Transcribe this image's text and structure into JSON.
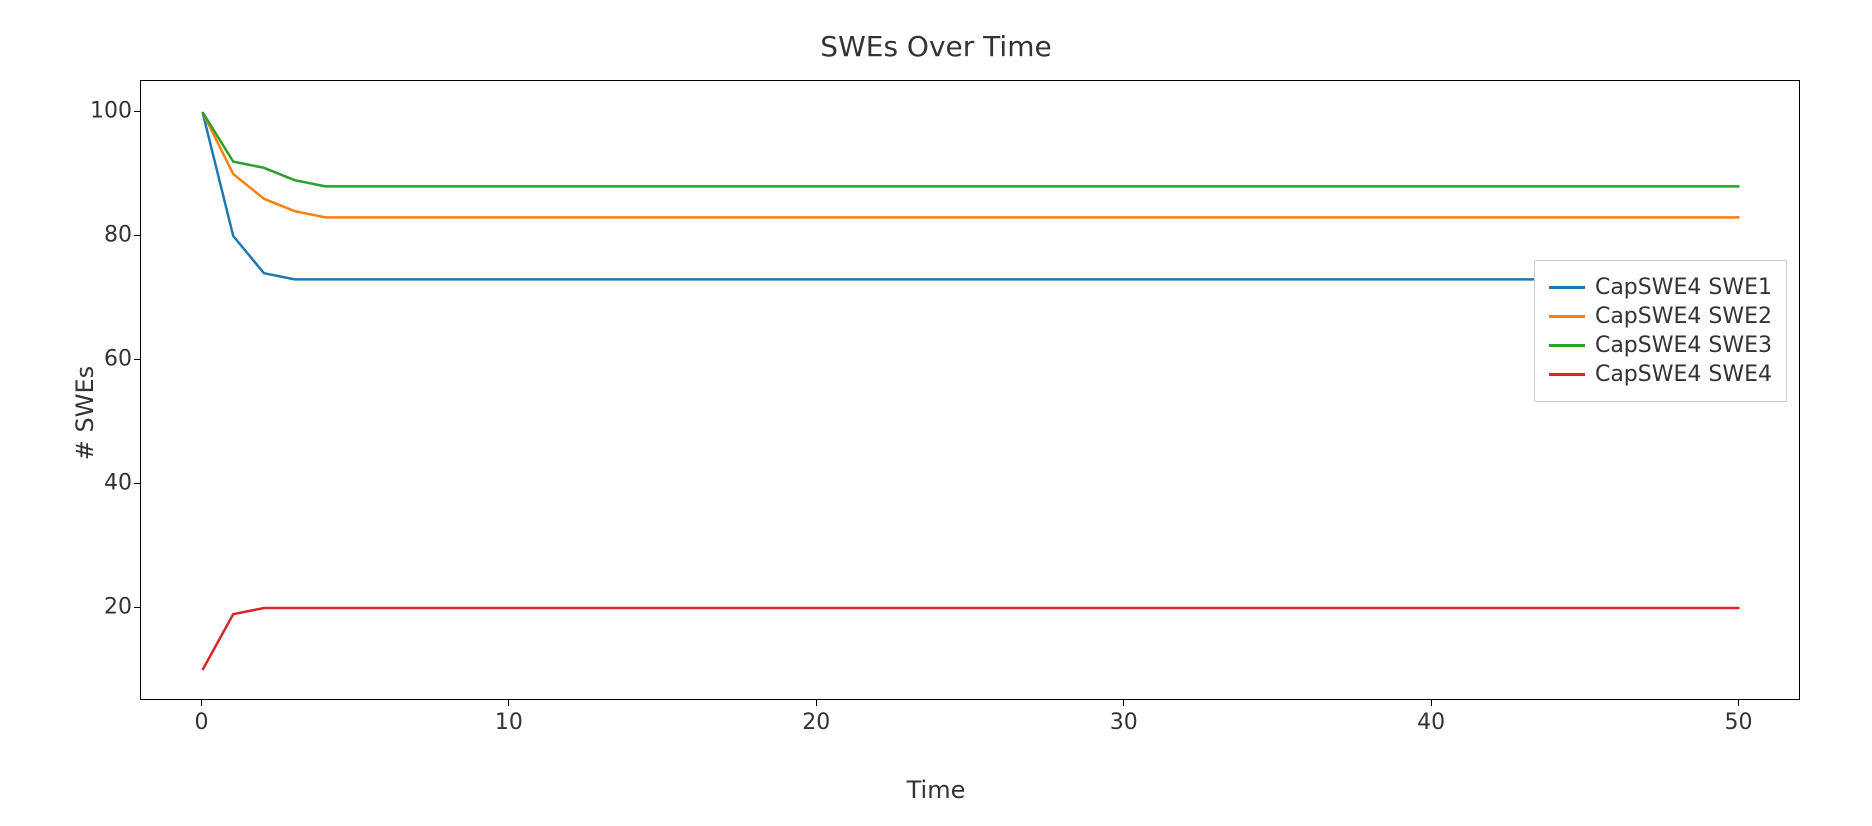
{
  "chart": {
    "type": "line",
    "title": "SWEs Over Time",
    "title_fontsize": 28,
    "xlabel": "Time",
    "ylabel": "# SWEs",
    "label_fontsize": 24,
    "tick_fontsize": 22,
    "legend_fontsize": 22,
    "background_color": "#ffffff",
    "border_color": "#000000",
    "text_color": "#333333",
    "legend_border_color": "#cccccc",
    "xlim": [
      -2,
      52
    ],
    "ylim": [
      5,
      105
    ],
    "xticks": [
      0,
      10,
      20,
      30,
      40,
      50
    ],
    "yticks": [
      20,
      40,
      60,
      80,
      100
    ],
    "line_width": 2.5,
    "legend_position": "center-right",
    "series": [
      {
        "label": "CapSWE4 SWE1",
        "color": "#1f77b4",
        "x": [
          0,
          1,
          2,
          3,
          4,
          5,
          10,
          20,
          30,
          40,
          50
        ],
        "y": [
          100,
          80,
          74,
          73,
          73,
          73,
          73,
          73,
          73,
          73,
          73
        ]
      },
      {
        "label": "CapSWE4 SWE2",
        "color": "#ff7f0e",
        "x": [
          0,
          1,
          2,
          3,
          4,
          5,
          10,
          20,
          30,
          40,
          50
        ],
        "y": [
          100,
          90,
          86,
          84,
          83,
          83,
          83,
          83,
          83,
          83,
          83
        ]
      },
      {
        "label": "CapSWE4 SWE3",
        "color": "#2ca02c",
        "x": [
          0,
          1,
          2,
          3,
          4,
          5,
          10,
          20,
          30,
          40,
          50
        ],
        "y": [
          100,
          92,
          91,
          89,
          88,
          88,
          88,
          88,
          88,
          88,
          88
        ]
      },
      {
        "label": "CapSWE4 SWE4",
        "color": "#d62728",
        "x": [
          0,
          1,
          2,
          3,
          4,
          5,
          10,
          20,
          30,
          40,
          50
        ],
        "y": [
          10,
          19,
          20,
          20,
          20,
          20,
          20,
          20,
          20,
          20,
          20
        ]
      }
    ]
  }
}
